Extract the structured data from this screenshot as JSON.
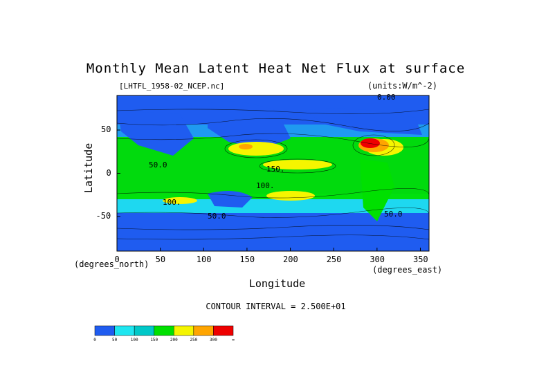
{
  "title": "Monthly Mean Latent Heat Net Flux at surface",
  "subtitle_left": "[LHTFL_1958-02_NCEP.nc]",
  "subtitle_right": "(units:W/m^-2)",
  "contour_interval": "CONTOUR INTERVAL = 2.500E+01",
  "chart_data": {
    "type": "heatmap",
    "title": "Monthly Mean Latent Heat Net Flux at surface",
    "xlabel": "Longitude",
    "ylabel": "Latitude",
    "x_unit": "(degrees_east)",
    "y_unit": "(degrees_north)",
    "xlim": [
      0,
      360
    ],
    "ylim": [
      -90,
      90
    ],
    "x_ticks": [
      0,
      50,
      100,
      150,
      200,
      250,
      300,
      350
    ],
    "y_ticks": [
      -50,
      0,
      50
    ],
    "contour_labels": [
      "0.00",
      "50.0",
      "100.",
      "150.",
      "50.0",
      "100.",
      "50.0"
    ],
    "colorbar": {
      "levels": [
        0,
        50,
        100,
        150,
        200,
        250,
        300
      ],
      "labels": [
        "0",
        "50",
        "100",
        "150",
        "200",
        "250",
        "300",
        "∞"
      ],
      "colors": [
        "#1f5cf0",
        "#1ee6f0",
        "#00c8c8",
        "#00e000",
        "#f5f500",
        "#ffa500",
        "#ee0000"
      ]
    }
  }
}
